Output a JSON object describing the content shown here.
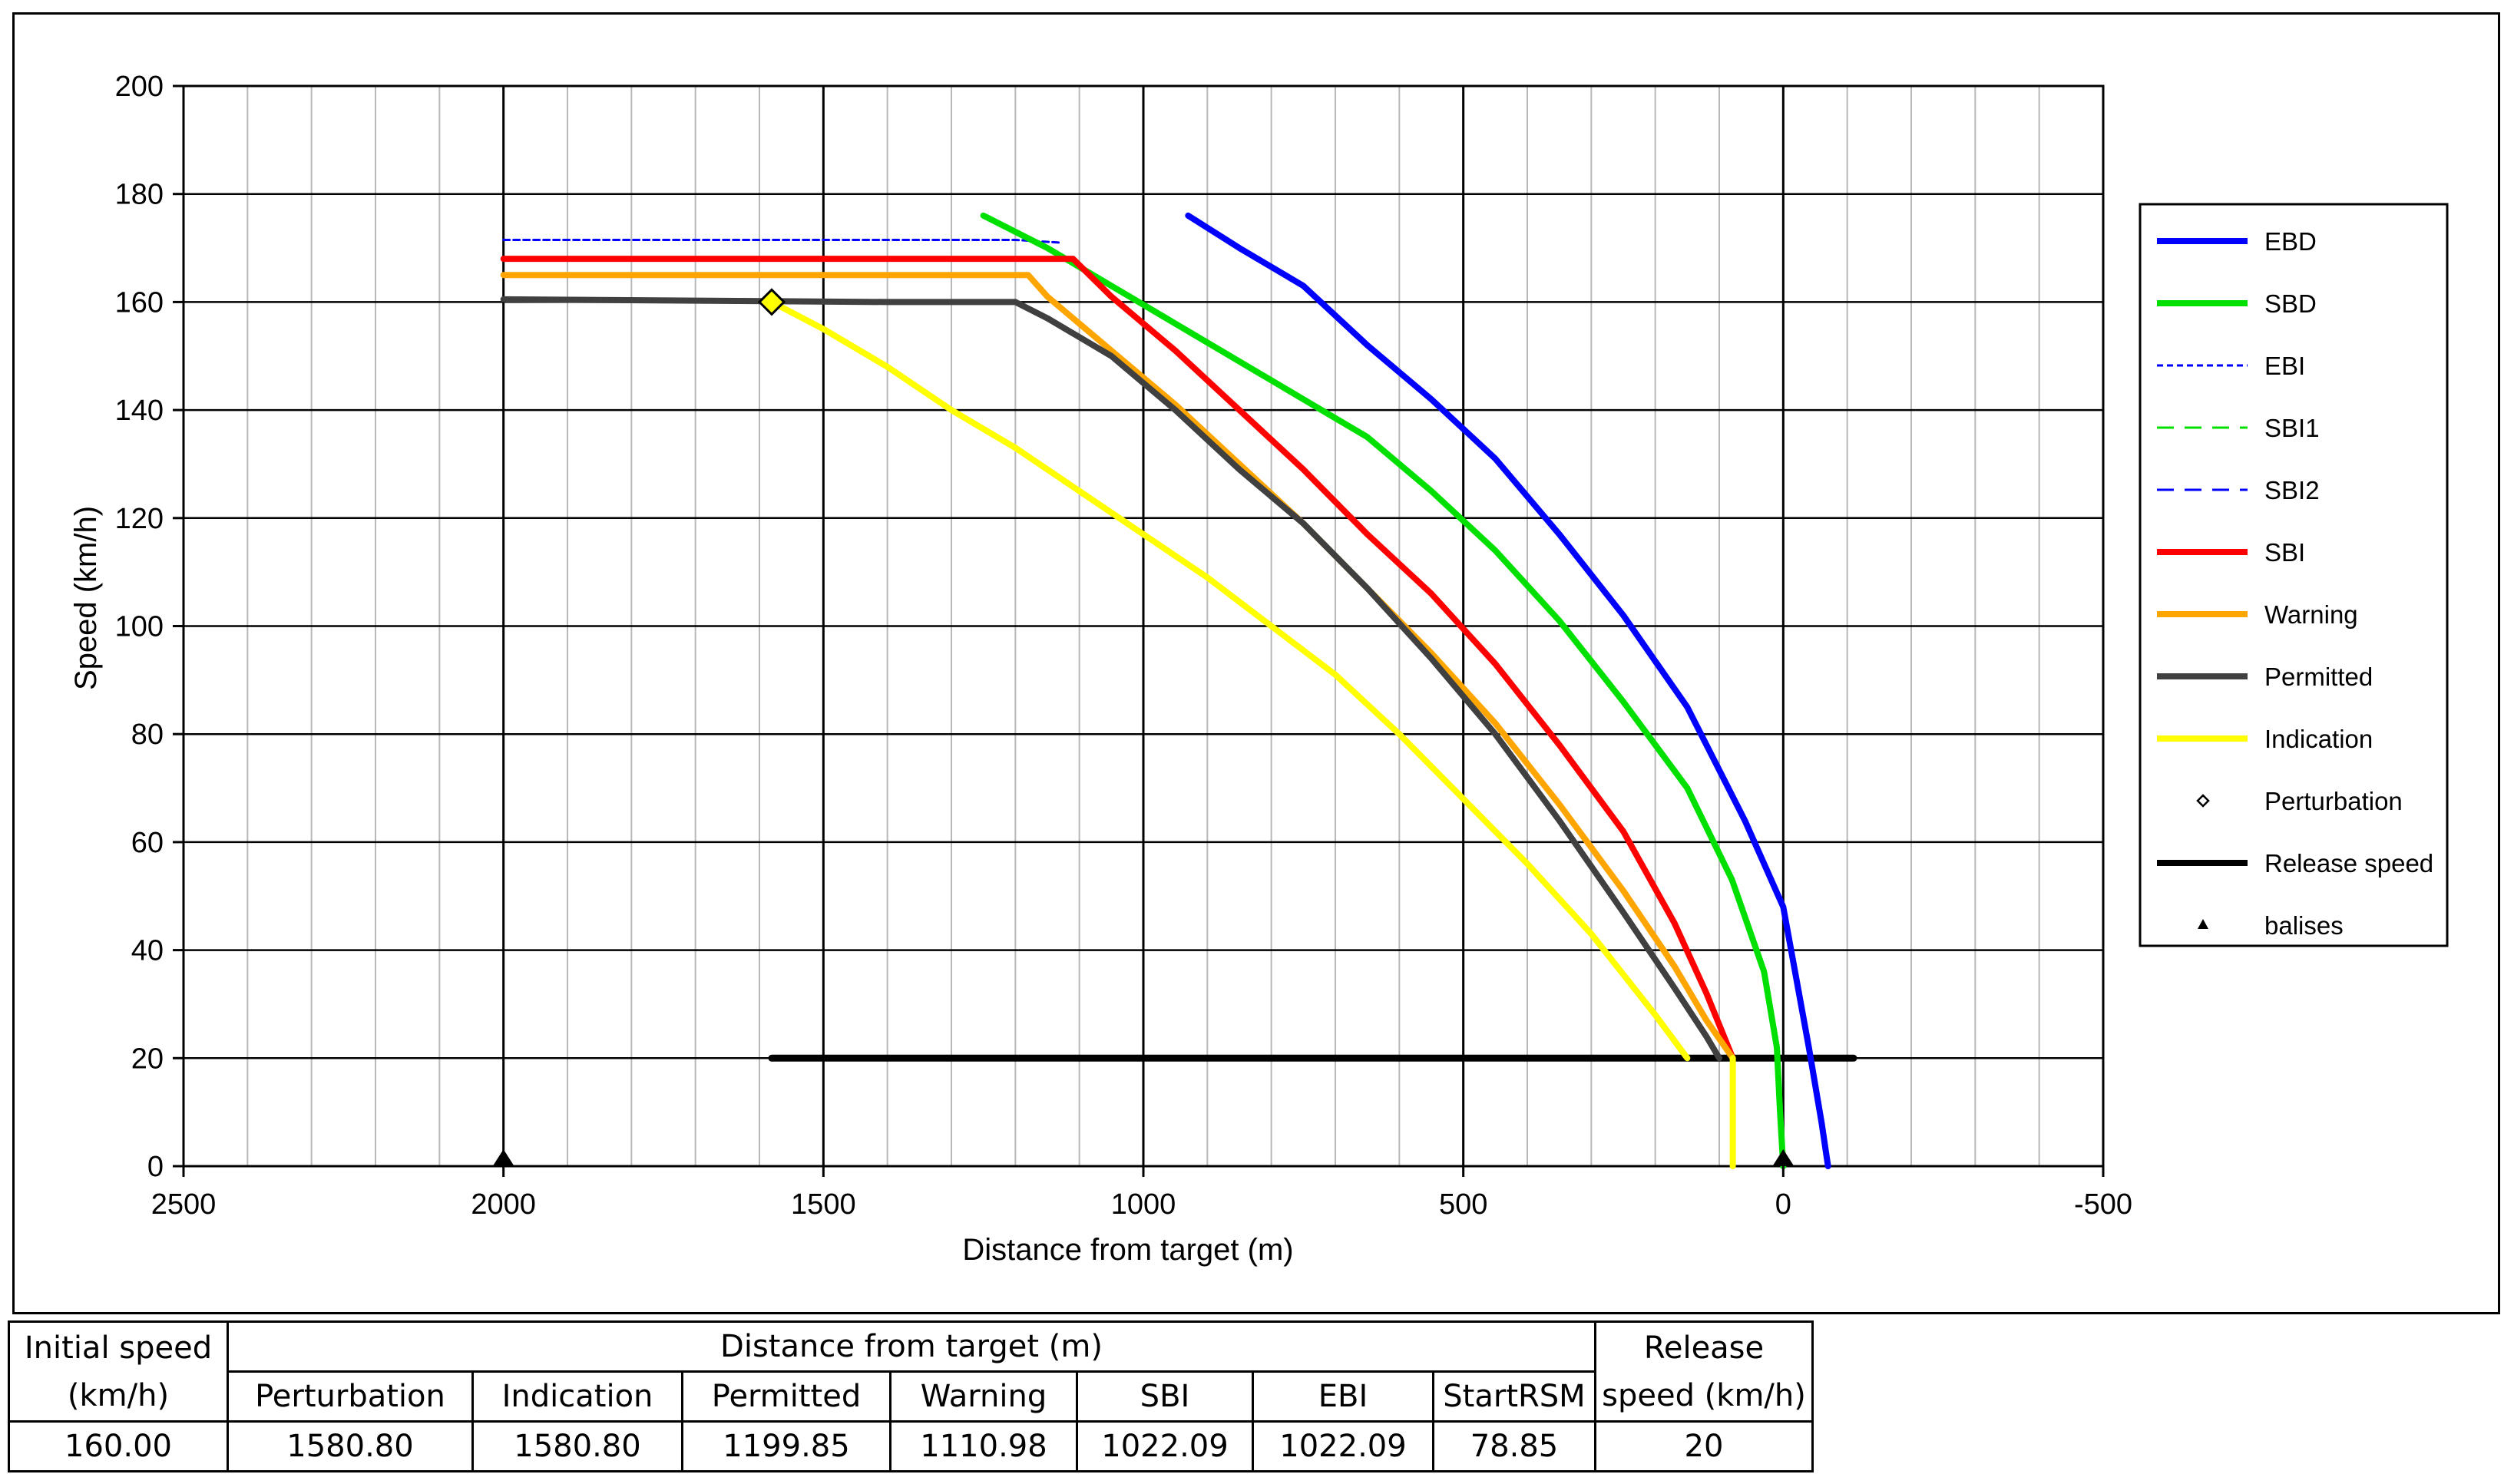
{
  "chart_data": {
    "type": "line",
    "title": "",
    "xlabel": "Distance from target (m)",
    "ylabel": "Speed (km/h)",
    "xlim": [
      2500,
      -500
    ],
    "ylim": [
      0,
      200
    ],
    "x_ticks": [
      2500,
      2000,
      1500,
      1000,
      500,
      0,
      -500
    ],
    "x_tick_labels": [
      "2500",
      "2000",
      "1500",
      "1000",
      "500",
      "0",
      "-500"
    ],
    "y_ticks": [
      0,
      20,
      40,
      60,
      80,
      100,
      120,
      140,
      160,
      180,
      200
    ],
    "y_tick_labels": [
      "0",
      "20",
      "40",
      "60",
      "80",
      "100",
      "120",
      "140",
      "160",
      "180",
      "200"
    ],
    "grid": true,
    "legend_position": "right",
    "series": [
      {
        "name": "EBD",
        "color": "#0000ff",
        "style": "solid",
        "points": [
          [
            930,
            176
          ],
          [
            850,
            170
          ],
          [
            750,
            163
          ],
          [
            650,
            152
          ],
          [
            550,
            142
          ],
          [
            450,
            131
          ],
          [
            350,
            117
          ],
          [
            250,
            102
          ],
          [
            150,
            85
          ],
          [
            60,
            64
          ],
          [
            0,
            48
          ],
          [
            -20,
            35
          ],
          [
            -40,
            22
          ],
          [
            -60,
            8
          ],
          [
            -70,
            0
          ]
        ]
      },
      {
        "name": "SBD",
        "color": "#00e000",
        "style": "solid",
        "points": [
          [
            1250,
            176
          ],
          [
            1150,
            170
          ],
          [
            1050,
            163
          ],
          [
            950,
            156
          ],
          [
            850,
            149
          ],
          [
            750,
            142
          ],
          [
            650,
            135
          ],
          [
            550,
            125
          ],
          [
            450,
            114
          ],
          [
            350,
            101
          ],
          [
            250,
            86
          ],
          [
            150,
            70
          ],
          [
            80,
            53
          ],
          [
            30,
            36
          ],
          [
            10,
            22
          ],
          [
            5,
            10
          ],
          [
            0,
            0
          ]
        ]
      },
      {
        "name": "EBI",
        "color": "#0000ff",
        "style": "dotted",
        "points": [
          [
            2000,
            171.5
          ],
          [
            1200,
            171.5
          ],
          [
            1130,
            171
          ]
        ]
      },
      {
        "name": "SBI1",
        "color": "#00e000",
        "style": "dashed",
        "points": []
      },
      {
        "name": "SBI2",
        "color": "#0000ff",
        "style": "dashed",
        "points": []
      },
      {
        "name": "SBI",
        "color": "#ff0000",
        "style": "solid",
        "points": [
          [
            2000,
            168
          ],
          [
            1200,
            168
          ],
          [
            1110,
            168
          ],
          [
            1050,
            161
          ],
          [
            950,
            151
          ],
          [
            850,
            140
          ],
          [
            750,
            129
          ],
          [
            650,
            117
          ],
          [
            550,
            106
          ],
          [
            450,
            93
          ],
          [
            350,
            78
          ],
          [
            250,
            62
          ],
          [
            170,
            45
          ],
          [
            120,
            32
          ],
          [
            78.85,
            20
          ]
        ]
      },
      {
        "name": "Warning",
        "color": "#ffa500",
        "style": "solid",
        "points": [
          [
            2000,
            165
          ],
          [
            1200,
            165
          ],
          [
            1180,
            165
          ],
          [
            1150,
            161
          ],
          [
            1050,
            151
          ],
          [
            950,
            141
          ],
          [
            850,
            130
          ],
          [
            750,
            119
          ],
          [
            650,
            107
          ],
          [
            550,
            95
          ],
          [
            450,
            82
          ],
          [
            350,
            67
          ],
          [
            250,
            51
          ],
          [
            170,
            37
          ],
          [
            120,
            27
          ],
          [
            78.85,
            20
          ]
        ]
      },
      {
        "name": "Permitted",
        "color": "#404040",
        "style": "solid",
        "points": [
          [
            2000,
            160.5
          ],
          [
            1400,
            160
          ],
          [
            1199.85,
            160
          ],
          [
            1150,
            157
          ],
          [
            1050,
            150
          ],
          [
            950,
            140
          ],
          [
            850,
            129
          ],
          [
            750,
            119
          ],
          [
            650,
            107
          ],
          [
            550,
            94
          ],
          [
            450,
            80
          ],
          [
            350,
            64
          ],
          [
            250,
            47
          ],
          [
            170,
            33
          ],
          [
            120,
            24
          ],
          [
            100,
            20
          ]
        ]
      },
      {
        "name": "Indication",
        "color": "#ffff00",
        "style": "solid",
        "points": [
          [
            1580.8,
            160
          ],
          [
            1500,
            155
          ],
          [
            1400,
            148
          ],
          [
            1300,
            140
          ],
          [
            1200,
            133
          ],
          [
            1100,
            125
          ],
          [
            1000,
            117
          ],
          [
            900,
            109
          ],
          [
            800,
            100
          ],
          [
            700,
            91
          ],
          [
            600,
            80
          ],
          [
            500,
            68
          ],
          [
            400,
            56
          ],
          [
            300,
            43
          ],
          [
            200,
            28
          ],
          [
            150,
            20
          ]
        ]
      },
      {
        "name": "Indication-release",
        "color": "#ffff00",
        "style": "solid",
        "legend": false,
        "points": [
          [
            78.85,
            20
          ],
          [
            78.85,
            0
          ]
        ]
      },
      {
        "name": "Release speed",
        "color": "#000000",
        "style": "solid",
        "points": [
          [
            1580.8,
            20
          ],
          [
            -110,
            20
          ]
        ]
      }
    ],
    "markers": [
      {
        "name": "Perturbation",
        "type": "diamond",
        "color": "#ffff00",
        "x": 1580.8,
        "y": 160
      },
      {
        "name": "balises",
        "type": "triangle",
        "color": "#000000",
        "points": [
          [
            2000,
            0
          ],
          [
            0,
            0
          ]
        ]
      }
    ],
    "legend": [
      {
        "name": "EBD",
        "color": "#0000ff",
        "style": "solid"
      },
      {
        "name": "SBD",
        "color": "#00e000",
        "style": "solid"
      },
      {
        "name": "EBI",
        "color": "#0000ff",
        "style": "dotted"
      },
      {
        "name": "SBI1",
        "color": "#00e000",
        "style": "dashed"
      },
      {
        "name": "SBI2",
        "color": "#0000ff",
        "style": "dashed"
      },
      {
        "name": "SBI",
        "color": "#ff0000",
        "style": "solid"
      },
      {
        "name": "Warning",
        "color": "#ffa500",
        "style": "solid"
      },
      {
        "name": "Permitted",
        "color": "#404040",
        "style": "solid"
      },
      {
        "name": "Indication",
        "color": "#ffff00",
        "style": "solid"
      },
      {
        "name": "Perturbation",
        "color": "#000000",
        "style": "diamond"
      },
      {
        "name": "Release speed",
        "color": "#000000",
        "style": "solid"
      },
      {
        "name": "balises",
        "color": "#000000",
        "style": "triangle"
      }
    ]
  },
  "table": {
    "initial_speed_header": "Initial speed (km/h)",
    "distance_group_header": "Distance from target (m)",
    "release_speed_header": "Release speed (km/h)",
    "columns": [
      "Perturbation",
      "Indication",
      "Permitted",
      "Warning",
      "SBI",
      "EBI",
      "StartRSM"
    ],
    "values": {
      "initial_speed": "160.00",
      "Perturbation": "1580.80",
      "Indication": "1580.80",
      "Permitted": "1199.85",
      "Warning": "1110.98",
      "SBI": "1022.09",
      "EBI": "1022.09",
      "StartRSM": "78.85",
      "release_speed": "20"
    }
  }
}
